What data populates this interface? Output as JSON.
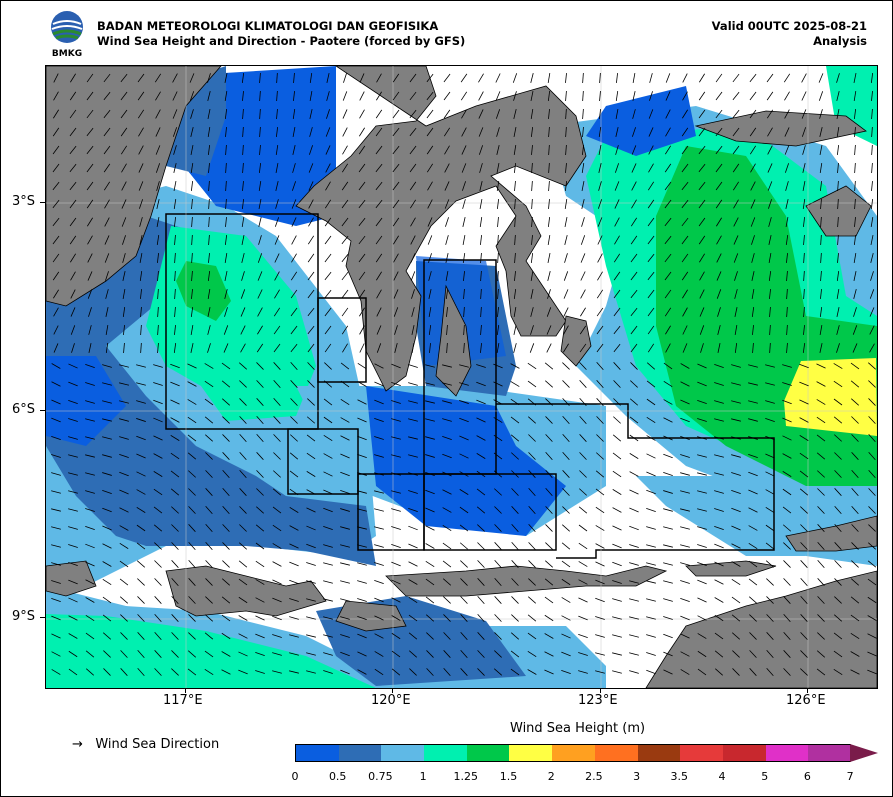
{
  "header": {
    "agency": "BADAN METEOROLOGI KLIMATOLOGI DAN GEOFISIKA",
    "subtitle": "Wind Sea Height and Direction - Paotere (forced by GFS)",
    "valid": "Valid 00UTC 2025-08-21",
    "analysis": "Analysis",
    "logo_text": "BMKG"
  },
  "axes": {
    "y_labels": [
      "3°S",
      "6°S",
      "9°S"
    ],
    "x_labels": [
      "117°E",
      "120°E",
      "123°E",
      "126°E"
    ]
  },
  "legend": {
    "direction_label": "Wind Sea Direction",
    "arrow_glyph": "→",
    "colorbar_title": "Wind Sea Height (m)",
    "colorbar_ticks": [
      "0",
      "0.5",
      "0.75",
      "1",
      "1.25",
      "1.5",
      "2",
      "2.5",
      "3",
      "3.5",
      "4",
      "5",
      "6",
      "7"
    ],
    "colors": [
      "#0a5ee0",
      "#2e6db5",
      "#5fb9e6",
      "#00f0b0",
      "#00c84a",
      "#ffff44",
      "#ffa020",
      "#ff7020",
      "#9a3a10",
      "#e63a3a",
      "#c8282e",
      "#e030c8",
      "#b030a0",
      "#7a1c4a"
    ]
  },
  "map_colors": {
    "land": "#808080",
    "blue": "#0a5ee0",
    "steel": "#2e6db5",
    "sky": "#5fb9e6",
    "teal": "#00f0b0",
    "green": "#00c84a",
    "yellow": "#ffff44"
  }
}
